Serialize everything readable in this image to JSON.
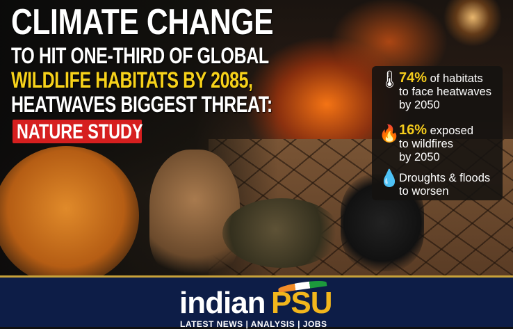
{
  "headline": {
    "line1": "CLIMATE CHANGE",
    "line2": "TO HIT ONE-THIRD OF GLOBAL",
    "line3": "WILDLIFE HABITATS BY 2085,",
    "line4": "HEATWAVES BIGGEST THREAT:",
    "badge": "NATURE STUDY"
  },
  "stats": [
    {
      "icon": "thermometer-icon",
      "highlight": "74%",
      "line1": " of habitats",
      "line2": "to face heatwaves",
      "line3": "by 2050"
    },
    {
      "icon": "fire-icon",
      "highlight": "16%",
      "line1": " exposed",
      "line2": "to wildfires",
      "line3": "by 2050"
    },
    {
      "icon": "water-drop-icon",
      "highlight": "",
      "line1": "Droughts & floods",
      "line2": "to worsen",
      "line3": ""
    }
  ],
  "footer": {
    "logo_part1": "indian",
    "logo_part2": "PSU",
    "tagline": "LATEST NEWS  |  ANALYSIS  |  JOBS"
  },
  "colors": {
    "highlight": "#f5cc1c",
    "badge": "#d61f1f",
    "footer": "#0d1d47"
  }
}
